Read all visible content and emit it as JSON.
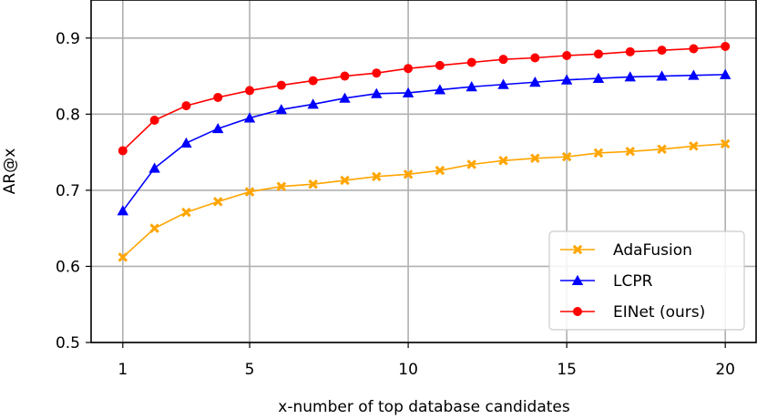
{
  "chart_data": {
    "type": "line",
    "title": "",
    "xlabel": "x-number of top database candidates",
    "ylabel": "AR@x",
    "xlim": [
      0,
      21
    ],
    "ylim": [
      0.5,
      0.95
    ],
    "x_ticks": [
      1,
      5,
      10,
      15,
      20
    ],
    "x_tick_labels": [
      "1",
      "5",
      "10",
      "15",
      "20"
    ],
    "y_ticks": [
      0.5,
      0.6,
      0.7,
      0.8,
      0.9
    ],
    "y_tick_labels": [
      "0.5",
      "0.6",
      "0.7",
      "0.8",
      "0.9"
    ],
    "grid": true,
    "legend_position": "lower-right",
    "x": [
      1,
      2,
      3,
      4,
      5,
      6,
      7,
      8,
      9,
      10,
      11,
      12,
      13,
      14,
      15,
      16,
      17,
      18,
      19,
      20
    ],
    "series": [
      {
        "name": "AdaFusion",
        "color": "#ffa500",
        "marker": "x",
        "values": [
          0.612,
          0.65,
          0.671,
          0.685,
          0.698,
          0.705,
          0.708,
          0.713,
          0.718,
          0.721,
          0.726,
          0.734,
          0.739,
          0.742,
          0.744,
          0.749,
          0.751,
          0.754,
          0.758,
          0.761
        ]
      },
      {
        "name": "LCPR",
        "color": "#0000ff",
        "marker": "triangle",
        "values": [
          0.673,
          0.729,
          0.762,
          0.781,
          0.795,
          0.806,
          0.813,
          0.821,
          0.827,
          0.828,
          0.832,
          0.836,
          0.839,
          0.842,
          0.845,
          0.847,
          0.849,
          0.85,
          0.851,
          0.852
        ]
      },
      {
        "name": "EINet (ours)",
        "color": "#ff0000",
        "marker": "circle",
        "values": [
          0.752,
          0.792,
          0.811,
          0.822,
          0.831,
          0.838,
          0.844,
          0.85,
          0.854,
          0.86,
          0.864,
          0.868,
          0.872,
          0.874,
          0.877,
          0.879,
          0.882,
          0.884,
          0.886,
          0.889
        ]
      }
    ]
  }
}
